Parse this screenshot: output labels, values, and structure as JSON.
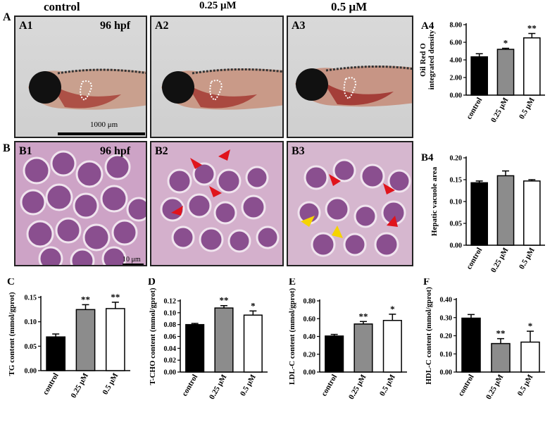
{
  "figure": {
    "section_A": "A",
    "section_B": "B",
    "column_titles": [
      "control",
      "0.25 μM",
      "0.5 μM"
    ],
    "fish_panels": [
      {
        "id": "A1",
        "note": "96 hpf"
      },
      {
        "id": "A2",
        "note": ""
      },
      {
        "id": "A3",
        "note": ""
      }
    ],
    "scale_bar_A": "1000 μm",
    "histo_panels": [
      {
        "id": "B1",
        "note": "96 hpf"
      },
      {
        "id": "B2",
        "note": ""
      },
      {
        "id": "B3",
        "note": ""
      }
    ],
    "scale_bar_B": "10 μm"
  },
  "chart_data": [
    {
      "id": "A4",
      "type": "bar",
      "panel_label": "A4",
      "categories": [
        "control",
        "0.25 μM",
        "0.5 μM"
      ],
      "values": [
        4.35,
        5.2,
        6.5
      ],
      "errors": [
        0.35,
        0.12,
        0.5
      ],
      "significance": [
        "",
        "*",
        "**"
      ],
      "ylabel": "Oil Red O integrated density",
      "ylabel_lines": [
        "Oil Red O",
        "integrated density"
      ],
      "ylim": [
        0,
        8
      ],
      "yticks": [
        "0.00",
        "2.00",
        "4.00",
        "6.00",
        "8.00"
      ],
      "colors": [
        "#000000",
        "#8c8c8c",
        "#ffffff"
      ]
    },
    {
      "id": "B4",
      "type": "bar",
      "panel_label": "B4",
      "categories": [
        "control",
        "0.25 μM",
        "0.5 μM"
      ],
      "values": [
        0.143,
        0.159,
        0.147
      ],
      "errors": [
        0.004,
        0.011,
        0.003
      ],
      "significance": [
        "",
        "",
        ""
      ],
      "ylabel": "Hepatic vacuole area",
      "ylabel_lines": [
        "Hepatic vacuole area"
      ],
      "ylim": [
        0,
        0.2
      ],
      "yticks": [
        "0.00",
        "0.05",
        "0.10",
        "0.15",
        "0.20"
      ],
      "colors": [
        "#000000",
        "#8c8c8c",
        "#ffffff"
      ]
    },
    {
      "id": "C",
      "type": "bar",
      "panel_label": "C",
      "categories": [
        "control",
        "0.25 μM",
        "0.5 μM"
      ],
      "values": [
        0.069,
        0.125,
        0.127
      ],
      "errors": [
        0.006,
        0.01,
        0.013
      ],
      "significance": [
        "",
        "**",
        "**"
      ],
      "ylabel": "TG content (mmol/gprot)",
      "ylabel_lines": [
        "TG content (mmol/gprot)"
      ],
      "ylim": [
        0,
        0.15
      ],
      "yticks": [
        "0.00",
        "0.05",
        "0.10",
        "0.15"
      ],
      "colors": [
        "#000000",
        "#8c8c8c",
        "#ffffff"
      ]
    },
    {
      "id": "D",
      "type": "bar",
      "panel_label": "D",
      "categories": [
        "control",
        "0.25 μM",
        "0.5 μM"
      ],
      "values": [
        0.08,
        0.108,
        0.096
      ],
      "errors": [
        0.002,
        0.004,
        0.007
      ],
      "significance": [
        "",
        "**",
        "*"
      ],
      "ylabel": "T-CHO content (mmol/gprot)",
      "ylabel_lines": [
        "T-CHO content (mmol/gprot)"
      ],
      "ylim": [
        0,
        0.12
      ],
      "yticks": [
        "0.00",
        "0.02",
        "0.04",
        "0.06",
        "0.08",
        "0.10",
        "0.12"
      ],
      "colors": [
        "#000000",
        "#8c8c8c",
        "#ffffff"
      ]
    },
    {
      "id": "E",
      "type": "bar",
      "panel_label": "E",
      "categories": [
        "control",
        "0.25 μM",
        "0.5 μM"
      ],
      "values": [
        0.405,
        0.54,
        0.58
      ],
      "errors": [
        0.018,
        0.028,
        0.07
      ],
      "significance": [
        "",
        "**",
        "*"
      ],
      "ylabel": "LDL-C content (mmol/gprot)",
      "ylabel_lines": [
        "LDL-C content (mmol/gprot)"
      ],
      "ylim": [
        0,
        0.8
      ],
      "yticks": [
        "0.00",
        "0.20",
        "0.40",
        "0.60",
        "0.80"
      ],
      "colors": [
        "#000000",
        "#8c8c8c",
        "#ffffff"
      ]
    },
    {
      "id": "F",
      "type": "bar",
      "panel_label": "F",
      "categories": [
        "control",
        "0.25 μM",
        "0.5 μM"
      ],
      "values": [
        0.297,
        0.157,
        0.165
      ],
      "errors": [
        0.02,
        0.027,
        0.06
      ],
      "significance": [
        "",
        "**",
        "*"
      ],
      "ylabel": "HDL-C content (mmol/gprot)",
      "ylabel_lines": [
        "HDL-C content (mmol/gprot)"
      ],
      "ylim": [
        0,
        0.4
      ],
      "yticks": [
        "0.00",
        "0.10",
        "0.20",
        "0.30",
        "0.40"
      ],
      "colors": [
        "#000000",
        "#8c8c8c",
        "#ffffff"
      ]
    }
  ]
}
